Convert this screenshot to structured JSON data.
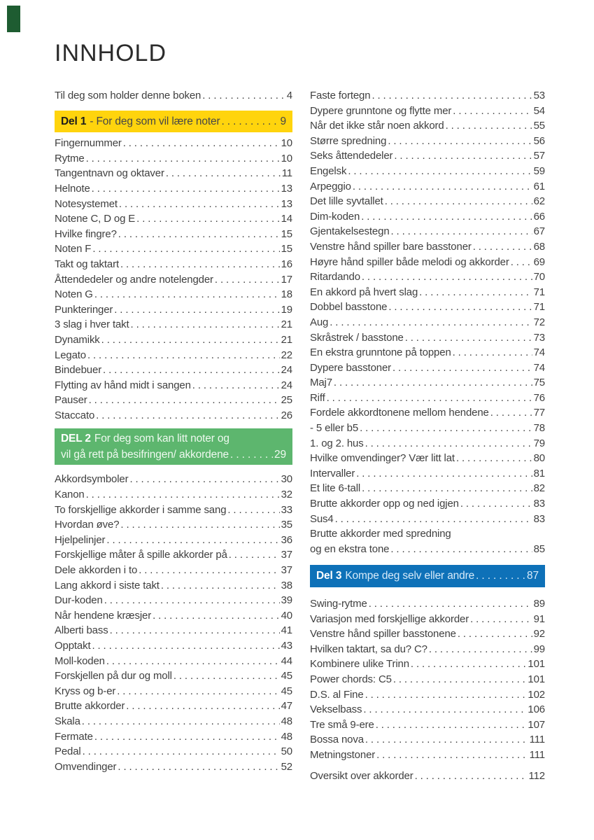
{
  "page": {
    "title": "INNHOLD"
  },
  "colors": {
    "yellow": "#ffd40d",
    "green": "#5db66e",
    "blue": "#0e71b8",
    "corner_tab": "#1e5c31",
    "body_text": "#3f3f3f"
  },
  "intro": {
    "label": "Til deg som holder denne boken",
    "page": "4"
  },
  "outro": {
    "label": "Oversikt over akkorder",
    "page": "112"
  },
  "headers": {
    "del1": {
      "strong": "Del 1",
      "text": "- For deg som vil lære noter",
      "page": "9"
    },
    "del2": {
      "strong": "DEL 2",
      "line1": "For deg som kan litt noter og",
      "line2": "vil gå rett på besifringen/ akkordene",
      "page": "29"
    },
    "del3": {
      "strong": "Del 3",
      "text": "Kompe deg selv eller andre",
      "page": "87"
    }
  },
  "del1_entries": [
    {
      "label": "Fingernummer",
      "page": "10"
    },
    {
      "label": "Rytme",
      "page": "10"
    },
    {
      "label": "Tangentnavn og oktaver",
      "page": "11"
    },
    {
      "label": "Helnote",
      "page": "13"
    },
    {
      "label": "Notesystemet",
      "page": "13"
    },
    {
      "label": "Notene C, D og E",
      "page": "14"
    },
    {
      "label": "Hvilke fingre?",
      "page": "15"
    },
    {
      "label": "Noten F",
      "page": "15"
    },
    {
      "label": "Takt og taktart",
      "page": "16"
    },
    {
      "label": "Åttendedeler og andre notelengder",
      "page": "17"
    },
    {
      "label": "Noten G",
      "page": "18"
    },
    {
      "label": "Punkteringer",
      "page": "19"
    },
    {
      "label": "3 slag i hver takt",
      "page": "21"
    },
    {
      "label": "Dynamikk",
      "page": "21"
    },
    {
      "label": "Legato",
      "page": "22"
    },
    {
      "label": "Bindebuer",
      "page": "24"
    },
    {
      "label": "Flytting av hånd midt i sangen",
      "page": "24"
    },
    {
      "label": "Pauser",
      "page": "25"
    },
    {
      "label": "Staccato",
      "page": "26"
    }
  ],
  "del2_left_entries": [
    {
      "label": "Akkordsymboler",
      "page": "30"
    },
    {
      "label": "Kanon",
      "page": "32"
    },
    {
      "label": "To forskjellige akkorder i samme sang",
      "page": "33"
    },
    {
      "label": "Hvordan øve?",
      "page": "35"
    },
    {
      "label": "Hjelpelinjer",
      "page": "36"
    },
    {
      "label": "Forskjellige måter å spille akkorder på",
      "page": "37"
    },
    {
      "label": "Dele akkorden i to",
      "page": "37"
    },
    {
      "label": "Lang akkord i siste takt",
      "page": "38"
    },
    {
      "label": "Dur-koden",
      "page": "39"
    },
    {
      "label": "Når hendene kræsjer",
      "page": "40"
    },
    {
      "label": "Alberti bass",
      "page": "41"
    },
    {
      "label": "Opptakt",
      "page": "43"
    },
    {
      "label": "Moll-koden",
      "page": "44"
    },
    {
      "label": "Forskjellen på dur og moll",
      "page": "45"
    },
    {
      "label": "Kryss og b-er",
      "page": "45"
    },
    {
      "label": "Brutte akkorder",
      "page": "47"
    },
    {
      "label": "Skala",
      "page": "48"
    },
    {
      "label": "Fermate",
      "page": "48"
    },
    {
      "label": "Pedal",
      "page": "50"
    },
    {
      "label": "Omvendinger",
      "page": "52"
    }
  ],
  "del2_right_entries": [
    {
      "label": "Faste fortegn",
      "page": "53"
    },
    {
      "label": "Dypere grunntone og flytte mer",
      "page": "54"
    },
    {
      "label": "Når det ikke står noen akkord",
      "page": "55"
    },
    {
      "label": "Større spredning",
      "page": "56"
    },
    {
      "label": "Seks åttendedeler",
      "page": "57"
    },
    {
      "label": "Engelsk",
      "page": "59"
    },
    {
      "label": "Arpeggio",
      "page": "61"
    },
    {
      "label": "Det lille syvtallet",
      "page": "62"
    },
    {
      "label": "Dim-koden",
      "page": "66"
    },
    {
      "label": "Gjentakelsestegn",
      "page": "67"
    },
    {
      "label": "Venstre hånd spiller bare basstoner",
      "page": "68"
    },
    {
      "label": "Høyre hånd spiller både melodi og akkorder",
      "page": "69"
    },
    {
      "label": "Ritardando",
      "page": "70"
    },
    {
      "label": "En akkord på hvert slag",
      "page": "71"
    },
    {
      "label": "Dobbel basstone",
      "page": "71"
    },
    {
      "label": "Aug",
      "page": "72"
    },
    {
      "label": "Skråstrek / basstone",
      "page": "73"
    },
    {
      "label": "En ekstra grunntone på toppen",
      "page": "74"
    },
    {
      "label": "Dypere basstoner",
      "page": "74"
    },
    {
      "label": "Maj7",
      "page": "75"
    },
    {
      "label": "Riff",
      "page": "76"
    },
    {
      "label": "Fordele akkordtonene mellom hendene",
      "page": "77"
    },
    {
      "label": "- 5 eller b5",
      "page": "78"
    },
    {
      "label": "1. og 2. hus",
      "page": "79"
    },
    {
      "label": "Hvilke omvendinger? Vær litt lat",
      "page": "80"
    },
    {
      "label": "Intervaller",
      "page": "81"
    },
    {
      "label": "Et lite 6-tall",
      "page": "82"
    },
    {
      "label": "Brutte akkorder opp og ned igjen",
      "page": "83"
    },
    {
      "label": "Sus4",
      "page": "83"
    },
    {
      "label": "Brutte akkorder med spredning",
      "page": ""
    },
    {
      "label": "og en ekstra tone",
      "page": "85"
    }
  ],
  "del3_entries": [
    {
      "label": "Swing-rytme",
      "page": "89"
    },
    {
      "label": "Variasjon med forskjellige akkorder",
      "page": "91"
    },
    {
      "label": "Venstre hånd spiller basstonene",
      "page": "92"
    },
    {
      "label": "Hvilken taktart, sa du? C?",
      "page": "99"
    },
    {
      "label": "Kombinere ulike Trinn",
      "page": "101"
    },
    {
      "label": "Power chords: C5",
      "page": "101"
    },
    {
      "label": "D.S. al Fine",
      "page": "102"
    },
    {
      "label": "Vekselbass",
      "page": "106"
    },
    {
      "label": "Tre små 9-ere",
      "page": "107"
    },
    {
      "label": "Bossa nova",
      "page": "111"
    },
    {
      "label": "Metningstoner",
      "page": "111"
    }
  ]
}
